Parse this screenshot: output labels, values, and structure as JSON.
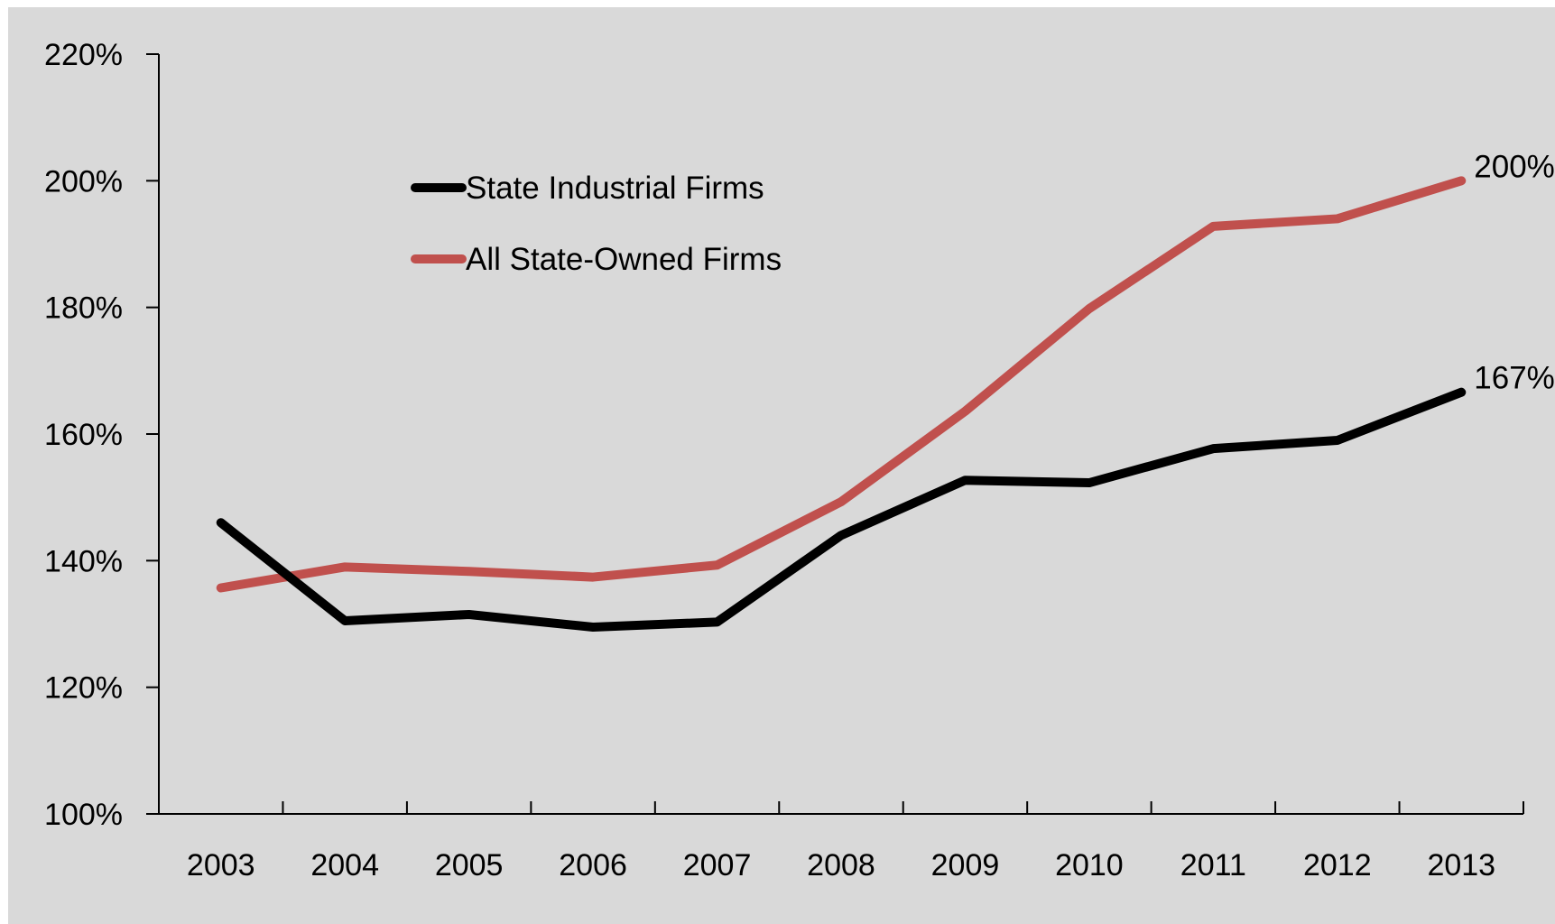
{
  "chart_data": {
    "type": "line",
    "title": "",
    "xlabel": "",
    "ylabel": "",
    "x": [
      "2003",
      "2004",
      "2005",
      "2006",
      "2007",
      "2008",
      "2009",
      "2010",
      "2011",
      "2012",
      "2013"
    ],
    "ylim": [
      100,
      220
    ],
    "yticks": [
      "100%",
      "120%",
      "140%",
      "160%",
      "180%",
      "200%",
      "220%"
    ],
    "ytick_values": [
      100,
      120,
      140,
      160,
      180,
      200,
      220
    ],
    "grid": false,
    "legend_position": "top-left",
    "background_color": "#d9d9d9",
    "series": [
      {
        "name": "State Industrial Firms",
        "color": "#000000",
        "values": [
          146,
          130.5,
          131.5,
          129.5,
          130.3,
          144,
          152.7,
          152.3,
          157.7,
          159,
          166.6
        ],
        "end_label": "167%"
      },
      {
        "name": "All State-Owned Firms",
        "color": "#c0504d",
        "values": [
          135.7,
          139,
          138.3,
          137.4,
          139.3,
          149.3,
          163.6,
          179.8,
          192.8,
          194,
          200
        ],
        "end_label": "200%"
      }
    ]
  }
}
